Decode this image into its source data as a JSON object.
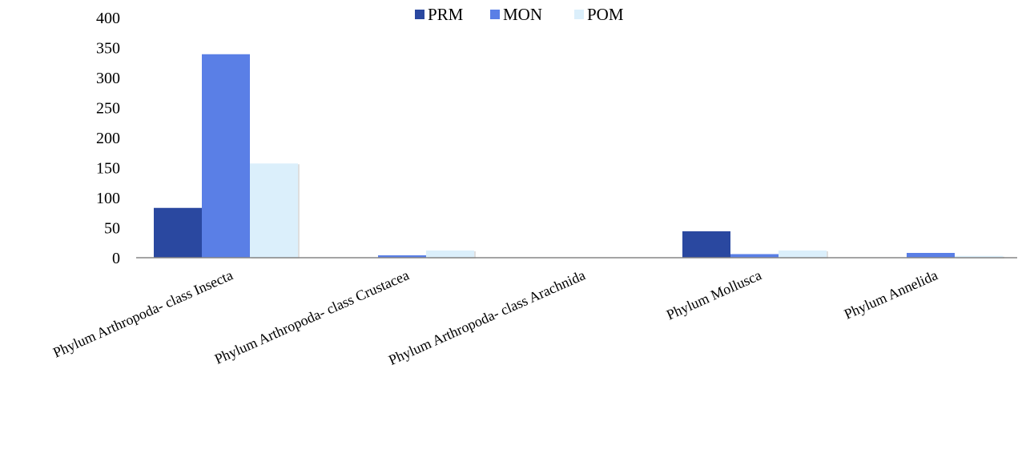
{
  "chart_data": {
    "type": "bar",
    "title": "",
    "xlabel": "",
    "ylabel": "",
    "ylim": [
      0,
      400
    ],
    "yticks": [
      0,
      50,
      100,
      150,
      200,
      250,
      300,
      350,
      400
    ],
    "grid": false,
    "legend": "top-center",
    "categories": [
      "Phylum Arthropoda- class Insecta",
      "Phylum Arthropoda- class Crustacea",
      "Phylum Arthropoda- class Arachnida",
      "Phylum Mollusca",
      "Phylum  Annelida"
    ],
    "series": [
      {
        "name": "PRM",
        "color": "#2a48a0",
        "values": [
          83,
          0,
          0,
          44,
          0
        ]
      },
      {
        "name": "MON",
        "color": "#5a7fe6",
        "values": [
          339,
          4,
          0,
          6,
          8
        ]
      },
      {
        "name": "POM",
        "color": "#dbeffb",
        "values": [
          157,
          12,
          0,
          12,
          3
        ]
      }
    ]
  }
}
